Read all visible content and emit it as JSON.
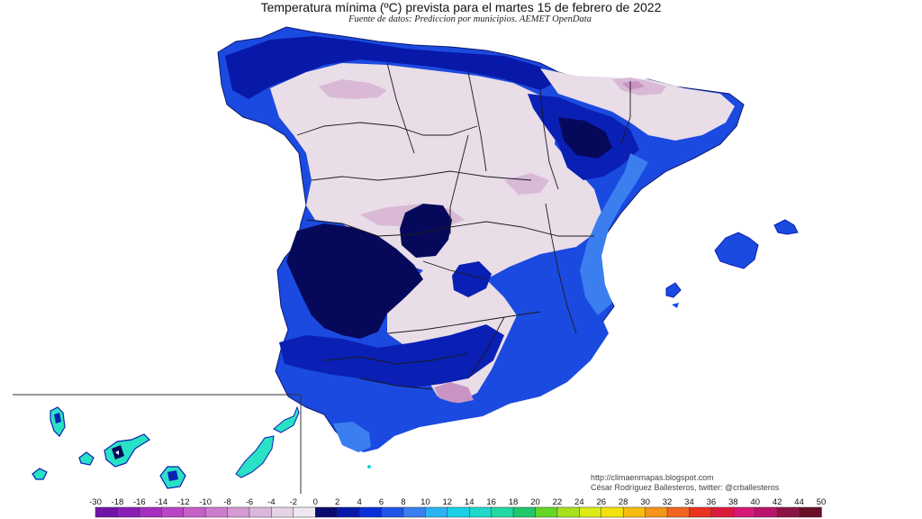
{
  "title": "Temperatura mínima (ºC) prevista para el martes 15 de febrero de 2022",
  "subtitle": "Fuente de datos: Prediccion por municipios. AEMET OpenData",
  "credits": {
    "url": "http://climaenmapas.blogspot.com",
    "author": "César Rodríguez Ballesteros, twitter: @crballesteros"
  },
  "legend": {
    "unit": "ºC",
    "ticks": [
      "-30",
      "-18",
      "-16",
      "-14",
      "-12",
      "-10",
      "-8",
      "-6",
      "-4",
      "-2",
      "0",
      "2",
      "4",
      "6",
      "8",
      "10",
      "12",
      "14",
      "16",
      "18",
      "20",
      "22",
      "24",
      "26",
      "28",
      "30",
      "32",
      "34",
      "36",
      "38",
      "40",
      "42",
      "44",
      "50"
    ],
    "colors": [
      "#6f14a6",
      "#8a1fb4",
      "#a52ec0",
      "#b845c4",
      "#c460c6",
      "#cb7ccc",
      "#d49ad2",
      "#dcb7dc",
      "#e6d3e5",
      "#efe7ee",
      "#0a0a6e",
      "#0818a8",
      "#0a2fd8",
      "#1f55e8",
      "#3a7ef0",
      "#2ab4f4",
      "#18d0e8",
      "#1ed8c8",
      "#22d7a4",
      "#1fc86a",
      "#66d62a",
      "#a8e01e",
      "#dcea16",
      "#f2e30e",
      "#f6bc10",
      "#f4951a",
      "#f06620",
      "#e83222",
      "#dc1a3a",
      "#d41a74",
      "#b8146e",
      "#8c1442",
      "#6a0f28"
    ]
  },
  "map_colors": {
    "below_minus2": "#e9dde8",
    "minus4": "#d9b9d6",
    "minus6": "#c994c3",
    "zero_to_2": "#06095a",
    "two_to_4": "#0a1fb4",
    "four_to_6": "#1b4ae0",
    "six_to_8": "#3a7ef0",
    "ten_to_12": "#1ed6d2",
    "twelve_to_14": "#29e1c4",
    "background": "#ffffff",
    "border": "#1a1a1a"
  },
  "icons": {
    "map": "spain-temperature-map",
    "inset": "canary-islands-inset"
  }
}
